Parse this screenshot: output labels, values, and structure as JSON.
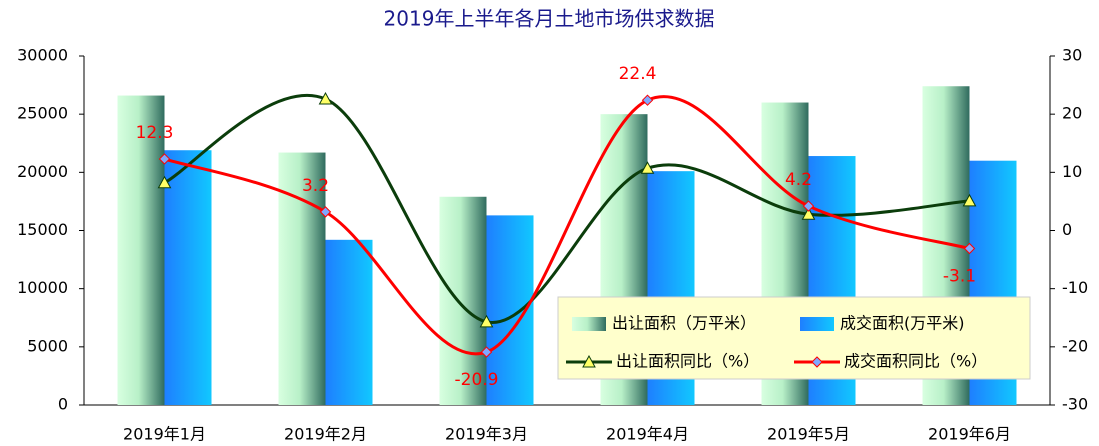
{
  "chart_data": {
    "type": "bar-line",
    "title": "2019年上半年各月土地市场供求数据",
    "categories": [
      "2019年1月",
      "2019年2月",
      "2019年3月",
      "2019年4月",
      "2019年5月",
      "2019年6月"
    ],
    "series": [
      {
        "name": "出让面积（万平米）",
        "type": "bar",
        "color": "#2f6b5e",
        "values": [
          26600,
          21700,
          17900,
          25000,
          26000,
          27400
        ]
      },
      {
        "name": "成交面积(万平米)",
        "type": "bar",
        "color": "#1e7fff",
        "values": [
          21900,
          14200,
          16300,
          20100,
          21400,
          21000
        ]
      },
      {
        "name": "出让面积同比（%）",
        "type": "line",
        "axis": "y2",
        "color": "#0b3d0b",
        "marker": "triangle",
        "values": [
          8.2,
          22.6,
          -15.7,
          10.7,
          2.8,
          5.1
        ]
      },
      {
        "name": "成交面积同比（%）",
        "type": "line",
        "axis": "y2",
        "color": "#ff0000",
        "marker": "diamond",
        "data_labels": true,
        "values": [
          12.3,
          3.2,
          -20.9,
          22.4,
          4.2,
          -3.1
        ]
      }
    ],
    "ylim": [
      0,
      30000
    ],
    "yticks": [
      0,
      5000,
      10000,
      15000,
      20000,
      25000,
      30000
    ],
    "y2lim": [
      -30,
      30
    ],
    "y2ticks": [
      -30,
      -20,
      -10,
      0,
      10,
      20,
      30
    ],
    "legend": "lower-right"
  }
}
